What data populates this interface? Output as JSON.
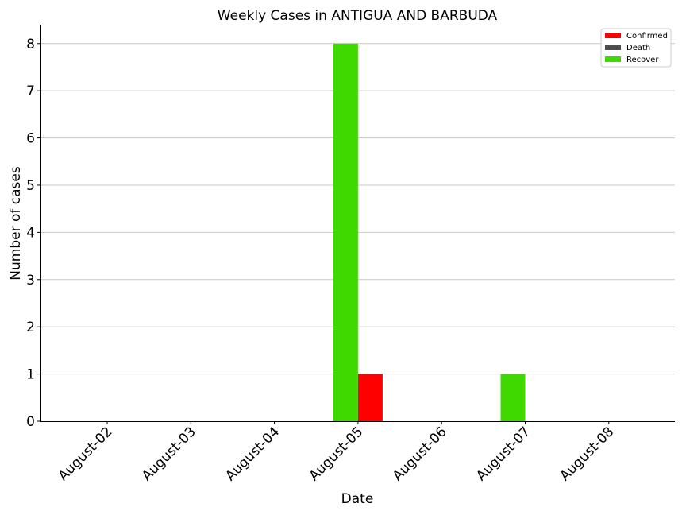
{
  "chart_data": {
    "type": "bar",
    "title": "Weekly Cases in ANTIGUA AND BARBUDA",
    "xlabel": "Date",
    "ylabel": "Number of cases",
    "categories": [
      "August-02",
      "August-03",
      "August-04",
      "August-05",
      "August-06",
      "August-07",
      "August-08"
    ],
    "series": [
      {
        "name": "Confirmed",
        "color": "#ff0000",
        "values": [
          0,
          0,
          0,
          1,
          0,
          0,
          0
        ]
      },
      {
        "name": "Death",
        "color": "#4d4d4d",
        "values": [
          0,
          0,
          0,
          0,
          0,
          0,
          0
        ]
      },
      {
        "name": "Recover",
        "color": "#3fd900",
        "values": [
          0,
          0,
          0,
          8,
          0,
          1,
          0
        ]
      }
    ],
    "yticks": [
      0,
      1,
      2,
      3,
      4,
      5,
      6,
      7,
      8
    ],
    "ylim": [
      0,
      8.4
    ],
    "grid": "y",
    "legend_position": "top-right"
  }
}
